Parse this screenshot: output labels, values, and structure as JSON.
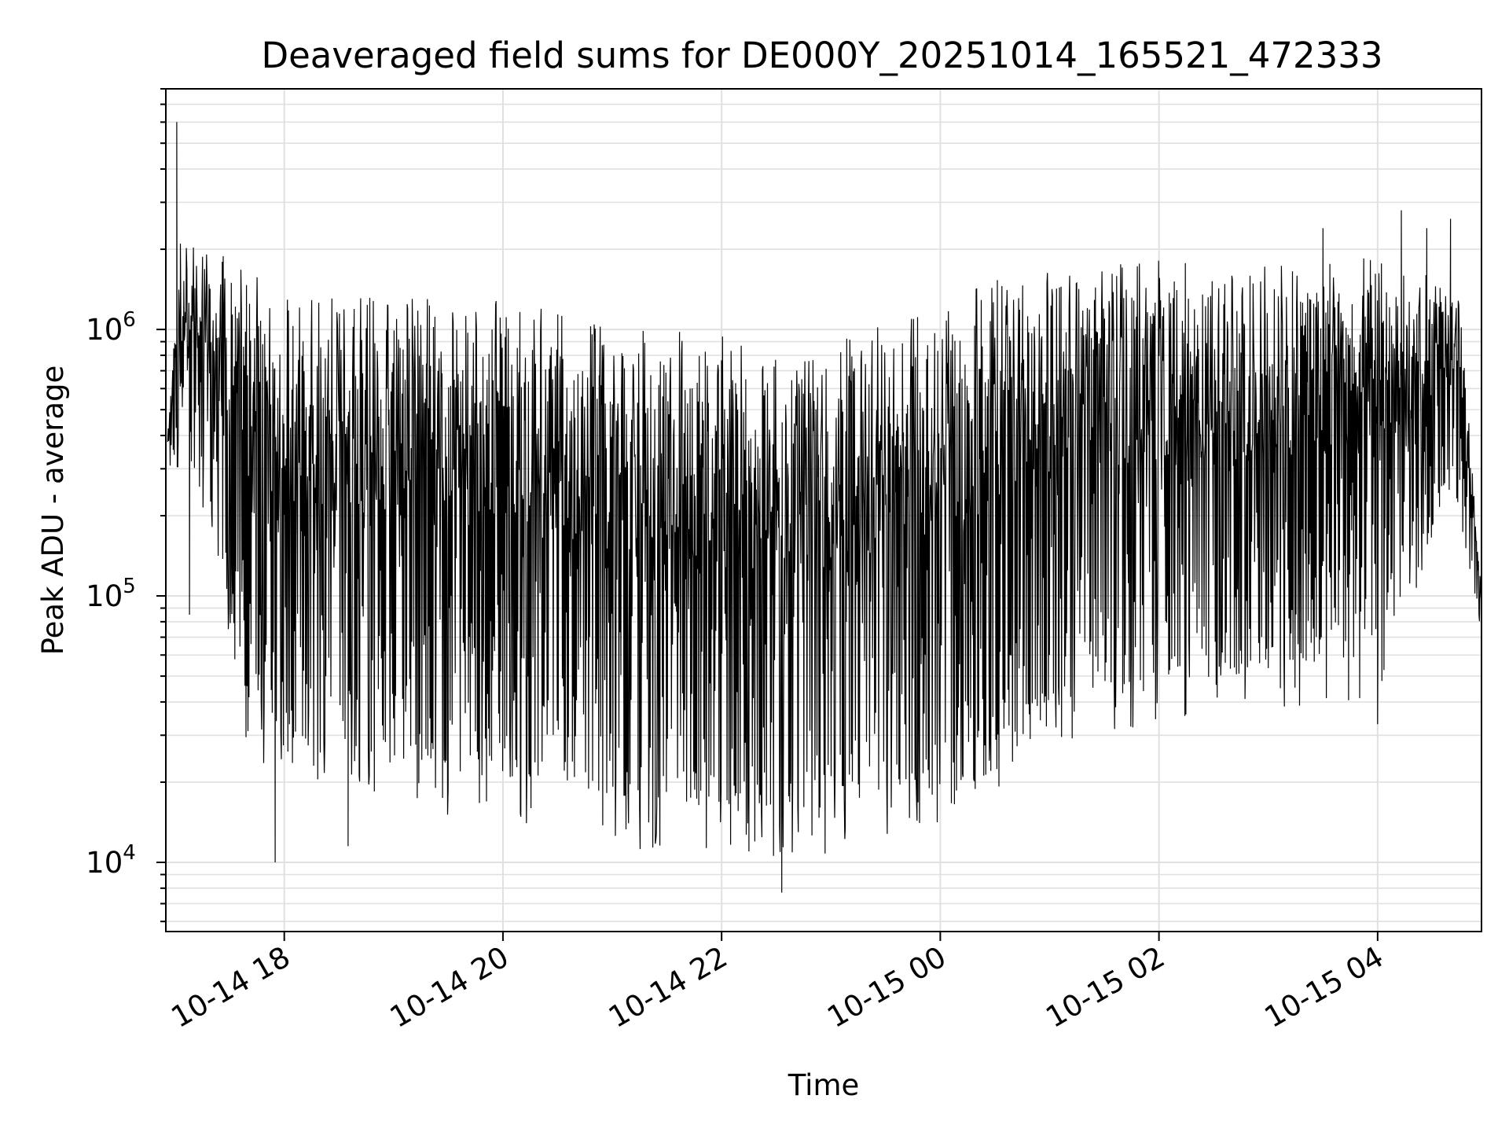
{
  "chart_data": {
    "type": "line",
    "title": "Deaveraged field sums for DE000Y_20251014_165521_472333",
    "xlabel": "Time",
    "ylabel": "Peak ADU - average",
    "y_scale": "log",
    "grid": true,
    "legend": "none",
    "line_color": "#000000",
    "grid_color": "#e0e0e0",
    "xlim": [
      "2025-10-14 16:55",
      "2025-10-15 04:57"
    ],
    "ylim": [
      5500,
      8000000
    ],
    "x_ticks": [
      {
        "value": "2025-10-14 18:00",
        "label": "10-14 18"
      },
      {
        "value": "2025-10-14 20:00",
        "label": "10-14 20"
      },
      {
        "value": "2025-10-14 22:00",
        "label": "10-14 22"
      },
      {
        "value": "2025-10-15 00:00",
        "label": "10-15 00"
      },
      {
        "value": "2025-10-15 02:00",
        "label": "10-15 02"
      },
      {
        "value": "2025-10-15 04:00",
        "label": "10-15 04"
      }
    ],
    "y_ticks": [
      {
        "value": 10000,
        "base": "10",
        "exp": "4"
      },
      {
        "value": 100000,
        "base": "10",
        "exp": "5"
      },
      {
        "value": 1000000,
        "base": "10",
        "exp": "6"
      }
    ],
    "series": [
      {
        "upper_envelope": [
          [
            "2025-10-14 16:56",
            400000
          ],
          [
            "2025-10-14 17:03",
            2000000
          ],
          [
            "2025-10-14 17:30",
            1500000
          ],
          [
            "2025-10-14 18:00",
            1000000
          ],
          [
            "2025-10-14 19:00",
            1000000
          ],
          [
            "2025-10-14 20:00",
            950000
          ],
          [
            "2025-10-14 21:00",
            800000
          ],
          [
            "2025-10-14 22:00",
            700000
          ],
          [
            "2025-10-14 22:30",
            600000
          ],
          [
            "2025-10-14 23:00",
            650000
          ],
          [
            "2025-10-14 23:30",
            800000
          ],
          [
            "2025-10-15 00:00",
            900000
          ],
          [
            "2025-10-15 00:30",
            1150000
          ],
          [
            "2025-10-15 01:00",
            1300000
          ],
          [
            "2025-10-15 02:00",
            1400000
          ],
          [
            "2025-10-15 03:00",
            1400000
          ],
          [
            "2025-10-15 04:00",
            1450000
          ],
          [
            "2025-10-15 04:45",
            1300000
          ],
          [
            "2025-10-15 04:57",
            100000
          ]
        ],
        "lower_envelope": [
          [
            "2025-10-14 16:56",
            280000
          ],
          [
            "2025-10-14 17:05",
            350000
          ],
          [
            "2025-10-14 17:20",
            200000
          ],
          [
            "2025-10-14 17:40",
            40000
          ],
          [
            "2025-10-14 18:00",
            30000
          ],
          [
            "2025-10-14 19:00",
            25000
          ],
          [
            "2025-10-14 20:00",
            22000
          ],
          [
            "2025-10-14 21:00",
            18000
          ],
          [
            "2025-10-14 22:00",
            16000
          ],
          [
            "2025-10-14 23:00",
            16000
          ],
          [
            "2025-10-15 00:00",
            22000
          ],
          [
            "2025-10-15 00:30",
            28000
          ],
          [
            "2025-10-15 01:00",
            40000
          ],
          [
            "2025-10-15 02:00",
            50000
          ],
          [
            "2025-10-15 03:00",
            55000
          ],
          [
            "2025-10-15 04:00",
            60000
          ],
          [
            "2025-10-15 04:40",
            300000
          ],
          [
            "2025-10-15 04:57",
            75000
          ]
        ],
        "spikes": [
          [
            "2025-10-14 17:01",
            6000000
          ],
          [
            "2025-10-14 17:03",
            2100000
          ],
          [
            "2025-10-14 17:08",
            85000
          ],
          [
            "2025-10-14 17:55",
            10000
          ],
          [
            "2025-10-14 18:35",
            11500
          ],
          [
            "2025-10-14 22:33",
            7700
          ],
          [
            "2025-10-14 22:15",
            11000
          ],
          [
            "2025-10-15 03:30",
            2400000
          ],
          [
            "2025-10-15 04:13",
            2800000
          ],
          [
            "2025-10-15 04:27",
            2400000
          ],
          [
            "2025-10-15 04:40",
            2600000
          ],
          [
            "2025-10-15 04:00",
            33000
          ]
        ]
      }
    ]
  }
}
